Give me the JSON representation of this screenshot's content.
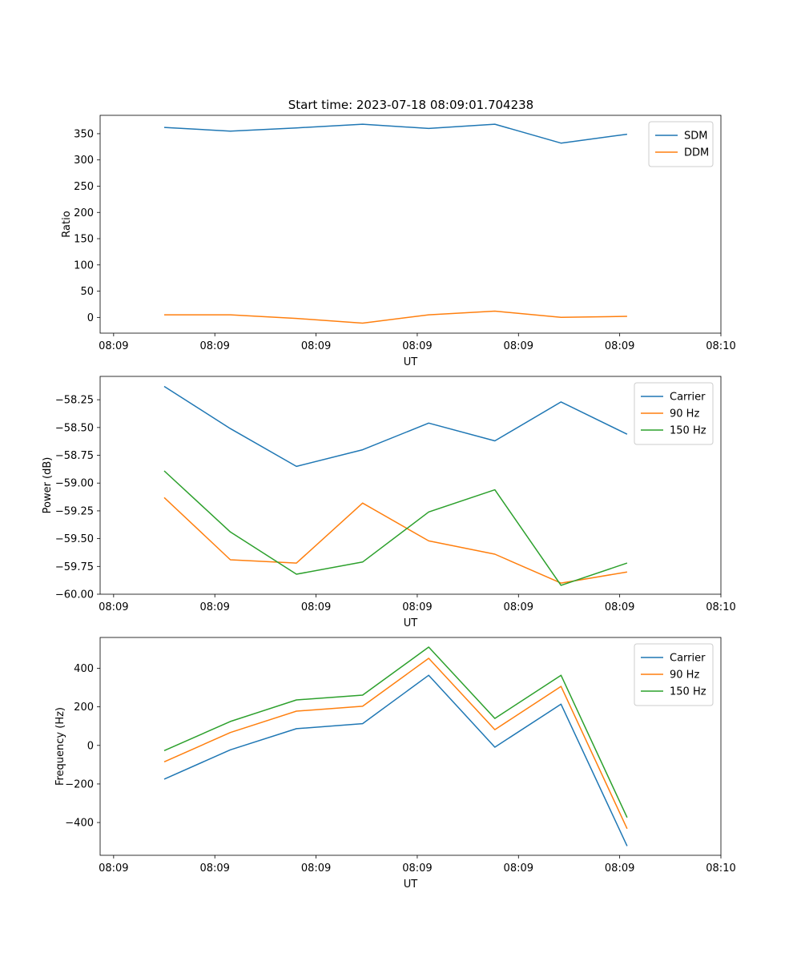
{
  "title": "Start time: 2023-07-18 08:09:01.704238",
  "colors": {
    "c0": "#1f77b4",
    "c1": "#ff7f0e",
    "c2": "#2ca02c"
  },
  "chart_data": [
    {
      "type": "line",
      "title": "Start time: 2023-07-18 08:09:01.704238",
      "xlabel": "UT",
      "ylabel": "Ratio",
      "xlim": [
        -0.1,
        4.5
      ],
      "ylim": [
        -30,
        385
      ],
      "x_ticks": [
        0,
        0.75,
        1.5,
        2.25,
        3.0,
        3.75,
        4.5
      ],
      "x_tick_labels": [
        "08:09",
        "08:09",
        "08:09",
        "08:09",
        "08:09",
        "08:09",
        "08:10"
      ],
      "y_ticks": [
        0,
        50,
        100,
        150,
        200,
        250,
        300,
        350
      ],
      "y_tick_labels": [
        "0",
        "50",
        "100",
        "150",
        "200",
        "250",
        "300",
        "350"
      ],
      "legend": "top-right",
      "x": [
        0.375,
        0.865,
        1.355,
        1.845,
        2.335,
        2.825,
        3.315,
        3.805
      ],
      "series": [
        {
          "name": "SDM",
          "color": "#1f77b4",
          "values": [
            362,
            355,
            361,
            368,
            360,
            368,
            332,
            349
          ]
        },
        {
          "name": "DDM",
          "color": "#ff7f0e",
          "values": [
            5,
            5,
            -2,
            -11,
            5,
            12,
            0,
            2
          ]
        }
      ]
    },
    {
      "type": "line",
      "xlabel": "UT",
      "ylabel": "Power (dB)",
      "xlim": [
        -0.1,
        4.5
      ],
      "ylim": [
        -60.0,
        -58.04
      ],
      "x_ticks": [
        0,
        0.75,
        1.5,
        2.25,
        3.0,
        3.75,
        4.5
      ],
      "x_tick_labels": [
        "08:09",
        "08:09",
        "08:09",
        "08:09",
        "08:09",
        "08:09",
        "08:10"
      ],
      "y_ticks": [
        -60.0,
        -59.75,
        -59.5,
        -59.25,
        -59.0,
        -58.75,
        -58.5,
        -58.25
      ],
      "y_tick_labels": [
        "−60.00",
        "−59.75",
        "−59.50",
        "−59.25",
        "−59.00",
        "−58.75",
        "−58.50",
        "−58.25"
      ],
      "legend": "top-right",
      "x": [
        0.375,
        0.865,
        1.355,
        1.845,
        2.335,
        2.825,
        3.315,
        3.805
      ],
      "series": [
        {
          "name": "Carrier",
          "color": "#1f77b4",
          "values": [
            -58.13,
            -58.51,
            -58.85,
            -58.7,
            -58.46,
            -58.62,
            -58.27,
            -58.56
          ]
        },
        {
          "name": "90 Hz",
          "color": "#ff7f0e",
          "values": [
            -59.13,
            -59.69,
            -59.72,
            -59.18,
            -59.52,
            -59.64,
            -59.9,
            -59.8
          ]
        },
        {
          "name": "150 Hz",
          "color": "#2ca02c",
          "values": [
            -58.89,
            -59.44,
            -59.82,
            -59.71,
            -59.26,
            -59.06,
            -59.92,
            -59.72
          ]
        }
      ]
    },
    {
      "type": "line",
      "xlabel": "UT",
      "ylabel": "Frequency (Hz)",
      "xlim": [
        -0.1,
        4.5
      ],
      "ylim": [
        -570,
        560
      ],
      "x_ticks": [
        0,
        0.75,
        1.5,
        2.25,
        3.0,
        3.75,
        4.5
      ],
      "x_tick_labels": [
        "08:09",
        "08:09",
        "08:09",
        "08:09",
        "08:09",
        "08:09",
        "08:10"
      ],
      "y_ticks": [
        -400,
        -200,
        0,
        200,
        400
      ],
      "y_tick_labels": [
        "−400",
        "−200",
        "0",
        "200",
        "400"
      ],
      "legend": "top-right",
      "x": [
        0.375,
        0.865,
        1.355,
        1.845,
        2.335,
        2.825,
        3.315,
        3.805
      ],
      "series": [
        {
          "name": "Carrier",
          "color": "#1f77b4",
          "values": [
            -175,
            -23,
            87,
            113,
            364,
            -9,
            214,
            -522
          ]
        },
        {
          "name": "90 Hz",
          "color": "#ff7f0e",
          "values": [
            -85,
            67,
            178,
            203,
            452,
            82,
            306,
            -432
          ]
        },
        {
          "name": "150 Hz",
          "color": "#2ca02c",
          "values": [
            -27,
            124,
            236,
            261,
            510,
            140,
            364,
            -374
          ]
        }
      ]
    }
  ]
}
